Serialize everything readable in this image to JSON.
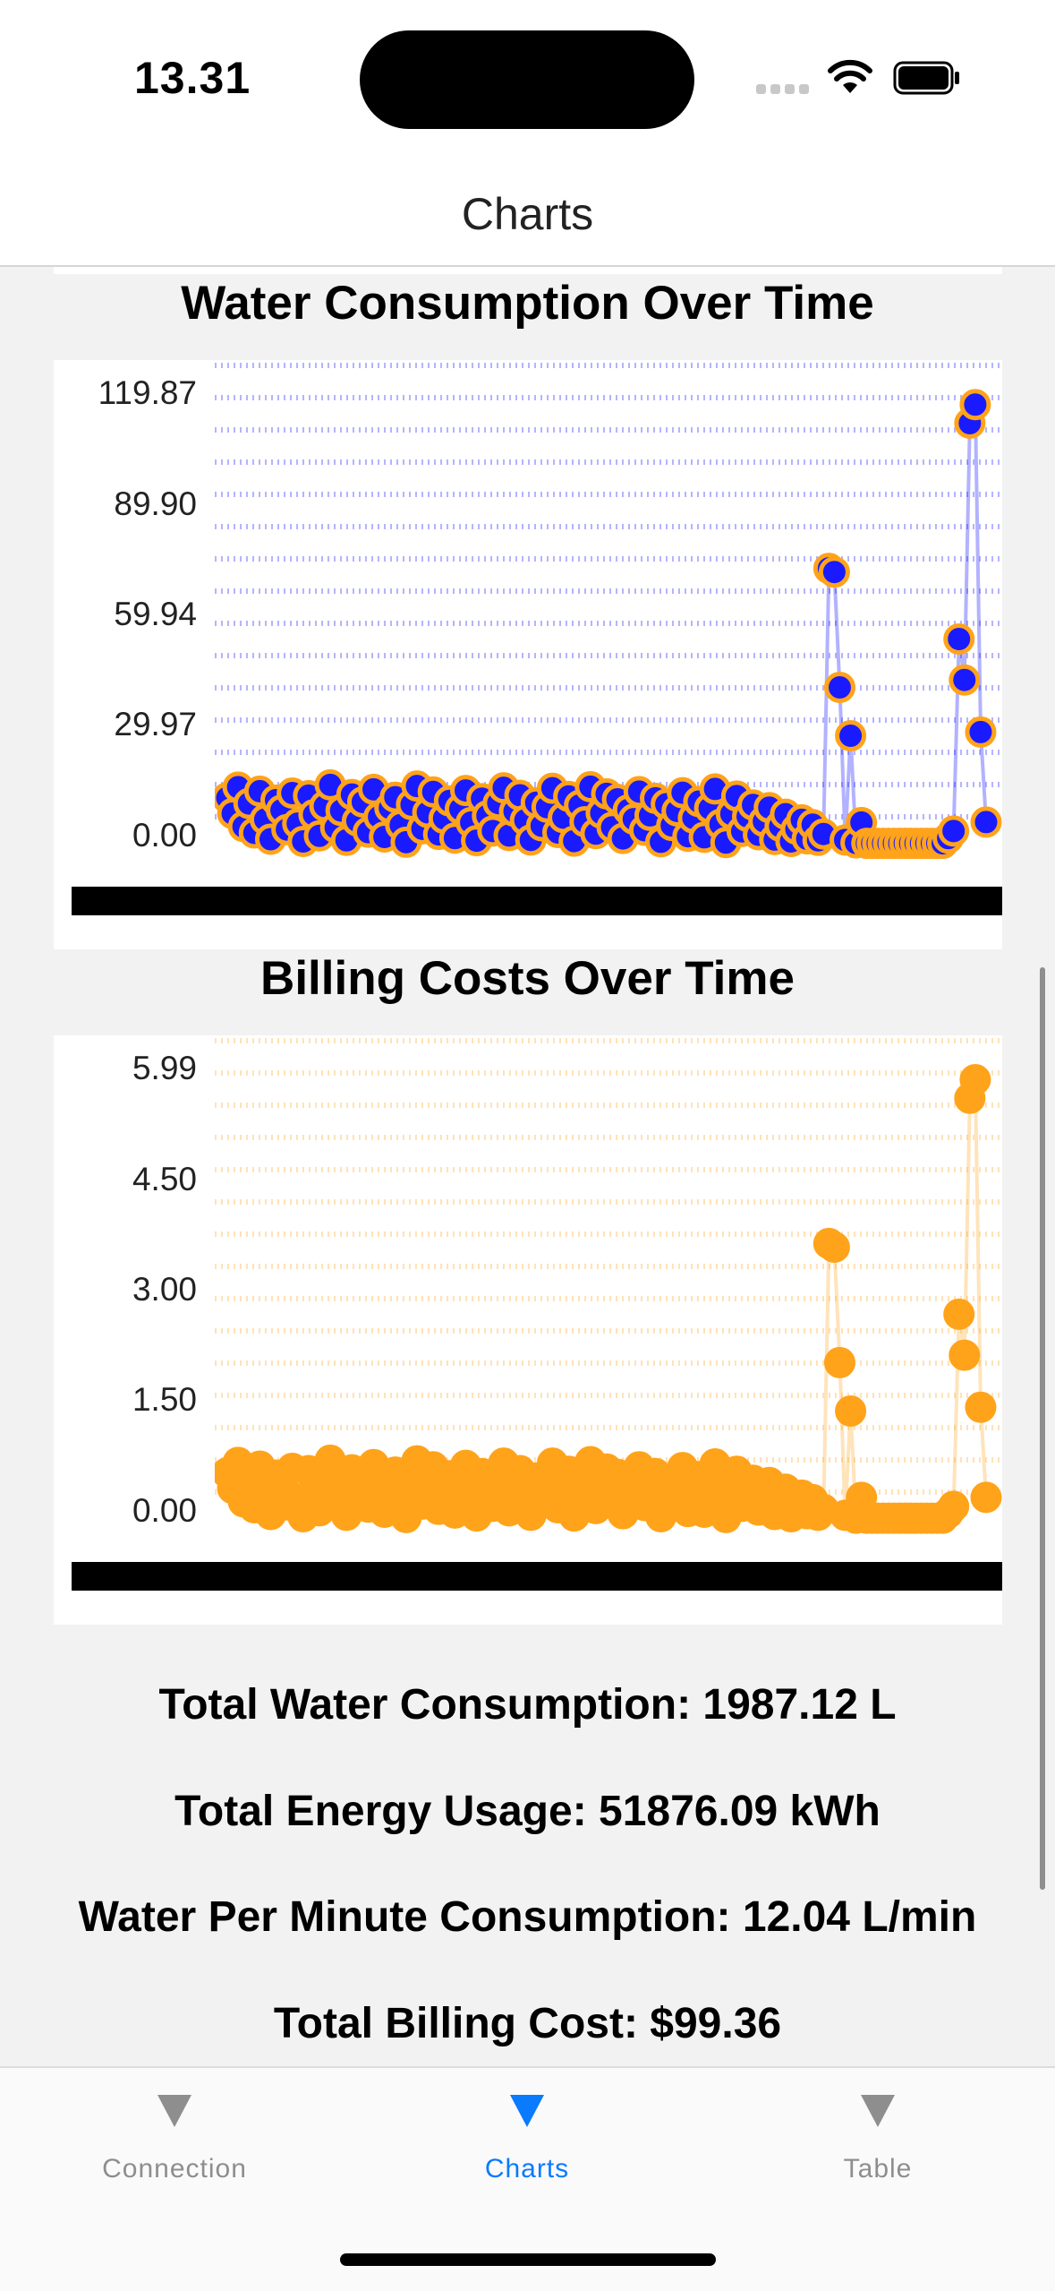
{
  "status_bar": {
    "time": "13.31"
  },
  "nav": {
    "title": "Charts"
  },
  "chart_data": [
    {
      "type": "line",
      "title": "Water Consumption Over Time",
      "y_ticks": [
        "0.00",
        "29.97",
        "59.94",
        "89.90",
        "119.87"
      ],
      "ylim": [
        0,
        119.87
      ],
      "grid": true,
      "colors": {
        "line": "#0000ff",
        "marker_fill": "#1a1aff",
        "marker_edge": "#ffa31a",
        "grid": "#b4b4ff"
      },
      "series": [
        {
          "values": [
            12.3,
            8.1,
            15.2,
            4.6,
            10.8,
            2.9,
            14.1,
            6.5,
            1.2,
            11.7,
            9.0,
            3.8,
            13.6,
            5.4,
            0.6,
            12.9,
            7.8,
            2.1,
            10.1,
            15.8,
            4.3,
            8.9,
            0.9,
            13.2,
            6.1,
            11.2,
            3.1,
            14.6,
            7.2,
            1.8,
            9.6,
            12.5,
            5.0,
            0.4,
            10.5,
            15.5,
            4.0,
            8.4,
            13.9,
            2.5,
            6.8,
            11.5,
            1.5,
            9.3,
            14.3,
            5.7,
            0.8,
            12.1,
            7.5,
            3.4,
            10.9,
            15.0,
            2.2,
            8.7,
            13.0,
            6.3,
            1.0,
            11.0,
            4.8,
            9.8,
            14.9,
            3.0,
            7.0,
            12.7,
            0.7,
            10.3,
            5.9,
            15.3,
            2.7,
            8.2,
            13.4,
            4.4,
            11.9,
            1.4,
            9.1,
            6.6,
            14.0,
            3.6,
            7.6,
            12.2,
            0.5,
            10.6,
            4.9,
            8.8,
            13.7,
            2.0,
            6.9,
            11.3,
            1.7,
            9.5,
            14.7,
            5.2,
            0.3,
            8.0,
            12.8,
            3.3,
            7.3,
            10.4,
            2.4,
            6.0,
            9.7,
            1.1,
            4.7,
            7.9,
            0.6,
            3.9,
            6.4,
            1.3,
            5.1,
            0.9,
            2.6,
            74.0,
            73.0,
            42.0,
            1.0,
            29.0,
            0.2,
            5.7,
            0.1,
            0.1,
            0.1,
            0.1,
            0.1,
            0.1,
            0.1,
            0.1,
            0.1,
            0.1,
            0.1,
            0.1,
            0.1,
            0.1,
            0.1,
            1.5,
            3.4,
            55.0,
            44.0,
            113.0,
            118.0,
            30.0,
            5.8
          ]
        }
      ]
    },
    {
      "type": "line",
      "title": "Billing Costs Over Time",
      "y_ticks": [
        "0.00",
        "1.50",
        "3.00",
        "4.50",
        "5.99"
      ],
      "ylim": [
        0,
        5.99
      ],
      "grid": true,
      "colors": {
        "line": "#ffa31a",
        "marker_fill": "#ffa31a",
        "marker_edge": "#ffa31a",
        "grid": "#ffe2b6"
      },
      "series": [
        {
          "values": [
            0.62,
            0.41,
            0.76,
            0.23,
            0.54,
            0.15,
            0.71,
            0.33,
            0.06,
            0.59,
            0.45,
            0.19,
            0.68,
            0.27,
            0.03,
            0.65,
            0.39,
            0.11,
            0.51,
            0.79,
            0.22,
            0.45,
            0.05,
            0.66,
            0.31,
            0.56,
            0.16,
            0.73,
            0.36,
            0.09,
            0.48,
            0.63,
            0.25,
            0.02,
            0.53,
            0.78,
            0.2,
            0.42,
            0.7,
            0.13,
            0.34,
            0.58,
            0.08,
            0.47,
            0.72,
            0.29,
            0.04,
            0.61,
            0.38,
            0.17,
            0.55,
            0.75,
            0.11,
            0.44,
            0.65,
            0.32,
            0.05,
            0.55,
            0.24,
            0.49,
            0.75,
            0.15,
            0.35,
            0.64,
            0.04,
            0.52,
            0.3,
            0.77,
            0.14,
            0.41,
            0.67,
            0.22,
            0.6,
            0.07,
            0.46,
            0.33,
            0.7,
            0.18,
            0.38,
            0.61,
            0.03,
            0.53,
            0.25,
            0.44,
            0.69,
            0.1,
            0.35,
            0.57,
            0.09,
            0.48,
            0.74,
            0.26,
            0.02,
            0.4,
            0.64,
            0.17,
            0.37,
            0.52,
            0.12,
            0.3,
            0.49,
            0.06,
            0.24,
            0.4,
            0.03,
            0.2,
            0.32,
            0.07,
            0.26,
            0.05,
            0.13,
            3.7,
            3.65,
            2.1,
            0.05,
            1.45,
            0.01,
            0.29,
            0.01,
            0.01,
            0.01,
            0.01,
            0.01,
            0.01,
            0.01,
            0.01,
            0.01,
            0.01,
            0.01,
            0.01,
            0.01,
            0.01,
            0.01,
            0.08,
            0.17,
            2.75,
            2.2,
            5.65,
            5.9,
            1.5,
            0.29
          ]
        }
      ]
    }
  ],
  "summary": {
    "water": "Total Water Consumption: 1987.12 L",
    "energy": "Total Energy Usage: 51876.09 kWh",
    "per_minute": "Water Per Minute Consumption: 12.04 L/min",
    "billing": "Total Billing Cost: $99.36"
  },
  "tabs": [
    {
      "label": "Connection",
      "icon": "triangle-down-icon"
    },
    {
      "label": "Charts",
      "icon": "triangle-down-icon",
      "active": true
    },
    {
      "label": "Table",
      "icon": "triangle-down-icon"
    }
  ],
  "colors": {
    "accent": "#0a7aff",
    "inactive": "#8e8e8e"
  }
}
